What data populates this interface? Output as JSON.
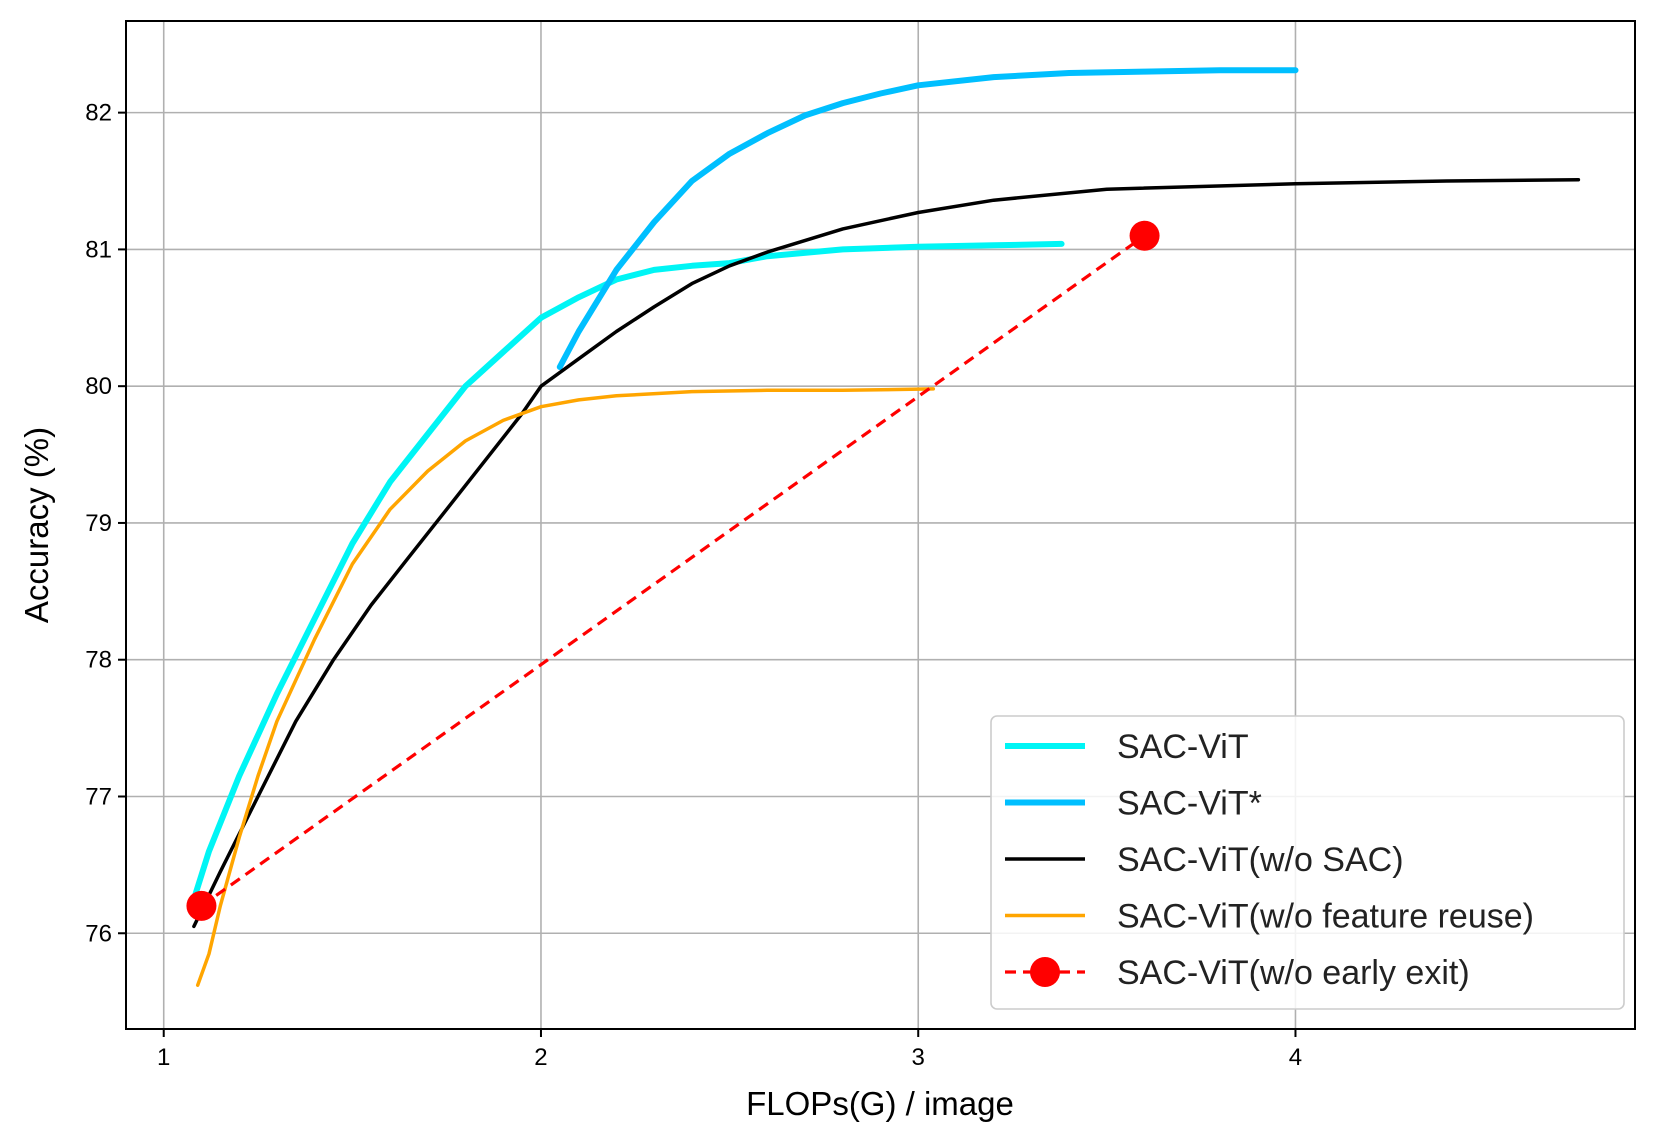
{
  "chart_data": {
    "type": "line",
    "title": "",
    "xlabel": "FLOPs(G) / image",
    "ylabel": "Accuracy (%)",
    "xlim": [
      0.9,
      4.9
    ],
    "ylim": [
      75.3,
      82.67
    ],
    "xticks": [
      1,
      2,
      3,
      4
    ],
    "yticks": [
      76,
      77,
      78,
      79,
      80,
      81,
      82
    ],
    "grid": true,
    "legend_position": "bottom-right",
    "series": [
      {
        "name": "SAC-ViT",
        "color": "#00f5f5",
        "style": "solid",
        "width": "thick",
        "x": [
          1.08,
          1.12,
          1.2,
          1.3,
          1.4,
          1.5,
          1.6,
          1.7,
          1.8,
          1.9,
          2.0,
          2.1,
          2.2,
          2.3,
          2.4,
          2.5,
          2.6,
          2.8,
          3.0,
          3.2,
          3.38
        ],
        "y": [
          76.25,
          76.6,
          77.15,
          77.75,
          78.3,
          78.85,
          79.3,
          79.65,
          80.0,
          80.25,
          80.5,
          80.65,
          80.78,
          80.85,
          80.88,
          80.9,
          80.95,
          81.0,
          81.02,
          81.03,
          81.04
        ]
      },
      {
        "name": "SAC-ViT*",
        "color": "#00bfff",
        "style": "solid",
        "width": "thick",
        "x": [
          2.05,
          2.1,
          2.2,
          2.3,
          2.4,
          2.5,
          2.6,
          2.7,
          2.8,
          2.9,
          3.0,
          3.2,
          3.4,
          3.6,
          3.8,
          4.0
        ],
        "y": [
          80.14,
          80.4,
          80.85,
          81.2,
          81.5,
          81.7,
          81.85,
          81.98,
          82.07,
          82.14,
          82.2,
          82.26,
          82.29,
          82.3,
          82.31,
          82.31
        ]
      },
      {
        "name": "SAC-ViT(w/o SAC)",
        "color": "#000000",
        "style": "solid",
        "width": "normal",
        "x": [
          1.08,
          1.15,
          1.25,
          1.35,
          1.45,
          1.55,
          1.65,
          1.75,
          1.85,
          1.95,
          2.0,
          2.1,
          2.2,
          2.3,
          2.4,
          2.5,
          2.6,
          2.8,
          3.0,
          3.2,
          3.5,
          4.0,
          4.4,
          4.75
        ],
        "y": [
          76.05,
          76.45,
          77.0,
          77.55,
          78.0,
          78.4,
          78.75,
          79.1,
          79.45,
          79.8,
          80.0,
          80.2,
          80.4,
          80.58,
          80.75,
          80.88,
          80.98,
          81.15,
          81.27,
          81.36,
          81.44,
          81.48,
          81.5,
          81.51
        ]
      },
      {
        "name": "SAC-ViT(w/o feature reuse)",
        "color": "#ffa500",
        "style": "solid",
        "width": "normal",
        "x": [
          1.09,
          1.12,
          1.15,
          1.2,
          1.25,
          1.3,
          1.4,
          1.5,
          1.6,
          1.7,
          1.8,
          1.9,
          2.0,
          2.1,
          2.2,
          2.4,
          2.6,
          2.8,
          3.04
        ],
        "y": [
          75.62,
          75.85,
          76.2,
          76.7,
          77.15,
          77.55,
          78.15,
          78.7,
          79.1,
          79.38,
          79.6,
          79.75,
          79.85,
          79.9,
          79.93,
          79.96,
          79.97,
          79.97,
          79.98
        ]
      },
      {
        "name": "SAC-ViT(w/o early exit)",
        "color": "#ff0000",
        "style": "dashed",
        "marker": "circle",
        "x": [
          1.1,
          3.6
        ],
        "y": [
          76.2,
          81.1
        ]
      }
    ]
  }
}
